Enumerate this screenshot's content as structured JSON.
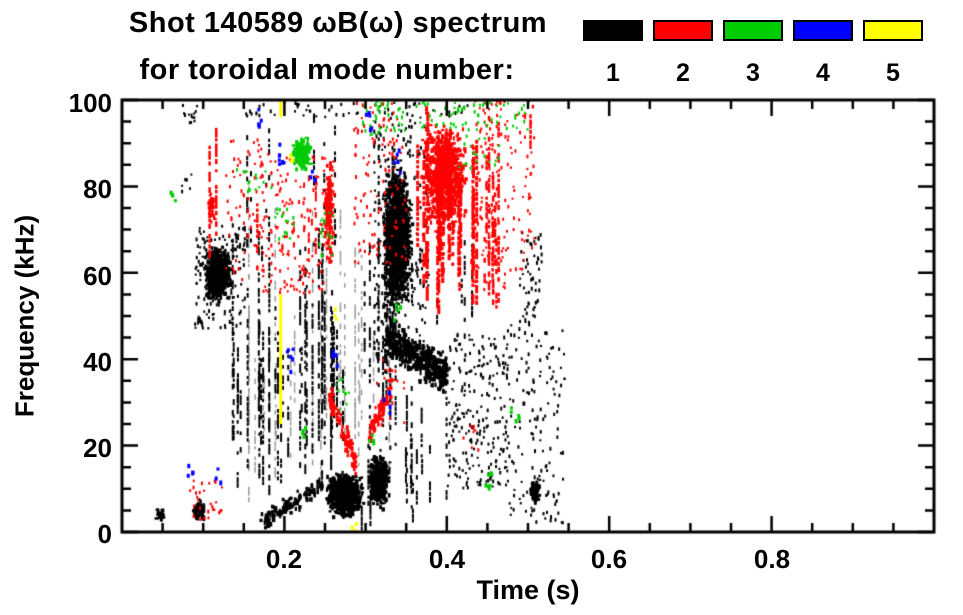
{
  "chart_data": {
    "type": "scatter",
    "title_line1": "Shot 140589 ωB(ω) spectrum",
    "title_line2": "for toroidal mode number:",
    "legend": {
      "items": [
        {
          "label": "1",
          "color": "#000000"
        },
        {
          "label": "2",
          "color": "#ff0000"
        },
        {
          "label": "3",
          "color": "#00cc00"
        },
        {
          "label": "4",
          "color": "#0000ff"
        },
        {
          "label": "5",
          "color": "#ffff00"
        }
      ]
    },
    "mode_colors": {
      "1": "#000000",
      "2": "#ff0000",
      "3": "#00cc00",
      "4": "#0000ff",
      "5": "#ffff00"
    },
    "x_axis": {
      "label": "Time (s)",
      "lim": [
        0,
        1.0
      ],
      "major_ticks": [
        0.2,
        0.4,
        0.6,
        0.8
      ],
      "tick_labels": [
        "0.2",
        "0.4",
        "0.6",
        "0.8"
      ],
      "minor_step": 0.05
    },
    "y_axis": {
      "label": "Frequency (kHz)",
      "lim": [
        0,
        100
      ],
      "major_ticks": [
        0,
        20,
        40,
        60,
        80,
        100
      ],
      "tick_labels": [
        "0",
        "20",
        "40",
        "60",
        "80",
        "100"
      ],
      "minor_step": 5
    },
    "frame_color": "#000000",
    "plot_bg": "#ffffff",
    "clusters": [
      {
        "mode": 1,
        "color": "#9a9a9a",
        "shape": "vstreaks",
        "t": [
          0.14,
          0.335
        ],
        "f": [
          3,
          80
        ],
        "cols": 22,
        "p": 0.5,
        "w": 1.5,
        "note": "faint gray streak comb"
      },
      {
        "mode": 1,
        "shape": "blob",
        "t": [
          0.038,
          0.054
        ],
        "f": [
          2,
          6
        ],
        "n": 30
      },
      {
        "mode": 1,
        "shape": "blob",
        "t": [
          0.083,
          0.107
        ],
        "f": [
          2,
          8
        ],
        "n": 70
      },
      {
        "mode": 1,
        "shape": "spread",
        "t": [
          0.074,
          0.094
        ],
        "f": [
          93,
          100
        ],
        "n": 14
      },
      {
        "mode": 1,
        "shape": "spread",
        "t": [
          0.074,
          0.09
        ],
        "f": [
          78,
          84
        ],
        "n": 6
      },
      {
        "mode": 1,
        "shape": "blob",
        "t": [
          0.096,
          0.138
        ],
        "f": [
          51,
          68
        ],
        "n": 650,
        "note": "dense n=1 blob ~60 kHz at 0.1-0.14 s"
      },
      {
        "mode": 1,
        "shape": "spread",
        "t": [
          0.09,
          0.152
        ],
        "f": [
          47,
          71
        ],
        "n": 160
      },
      {
        "mode": 1,
        "shape": "vstreaks",
        "t": [
          0.13,
          0.275
        ],
        "f": [
          8,
          72
        ],
        "cols": 34,
        "p": 0.6,
        "w": 2,
        "note": "comb of vertical streaks"
      },
      {
        "mode": 1,
        "shape": "vstreaks",
        "t": [
          0.145,
          0.275
        ],
        "f": [
          60,
          100
        ],
        "cols": 9,
        "p": 0.35,
        "w": 2
      },
      {
        "mode": 1,
        "shape": "spread",
        "t": [
          0.135,
          0.43
        ],
        "f": [
          96,
          100
        ],
        "n": 60
      },
      {
        "mode": 1,
        "shape": "band",
        "t": [
          0.17,
          0.247
        ],
        "f": [
          2,
          11
        ],
        "th": 3,
        "n": 130,
        "note": "rising low-f chirp"
      },
      {
        "mode": 1,
        "shape": "blob",
        "t": [
          0.245,
          0.302
        ],
        "f": [
          2,
          15
        ],
        "n": 850,
        "note": "dense low-f mass"
      },
      {
        "mode": 1,
        "shape": "blob",
        "t": [
          0.3,
          0.333
        ],
        "f": [
          4,
          20
        ],
        "n": 500
      },
      {
        "mode": 1,
        "shape": "vstreaks",
        "t": [
          0.295,
          0.312
        ],
        "f": [
          0,
          22
        ],
        "cols": 3,
        "p": 0.7,
        "w": 2
      },
      {
        "mode": 1,
        "shape": "vstreaks",
        "t": [
          0.277,
          0.34
        ],
        "f": [
          15,
          95
        ],
        "cols": 12,
        "p": 0.5,
        "w": 2
      },
      {
        "mode": 1,
        "shape": "blob",
        "t": [
          0.315,
          0.362
        ],
        "f": [
          46,
          90
        ],
        "n": 1500,
        "note": "large n=1 mass 0.32-0.36 s"
      },
      {
        "mode": 1,
        "shape": "spread",
        "t": [
          0.31,
          0.378
        ],
        "f": [
          40,
          96
        ],
        "n": 220
      },
      {
        "mode": 1,
        "shape": "band",
        "t": [
          0.325,
          0.4
        ],
        "f": [
          45,
          36
        ],
        "th": 6,
        "n": 450,
        "note": "descending 35-45 kHz band"
      },
      {
        "mode": 1,
        "shape": "vstreaks",
        "t": [
          0.33,
          0.402
        ],
        "f": [
          2,
          40
        ],
        "cols": 10,
        "p": 0.5,
        "w": 2
      },
      {
        "mode": 1,
        "shape": "vstreaks",
        "t": [
          0.355,
          0.432
        ],
        "f": [
          45,
          70
        ],
        "cols": 8,
        "p": 0.4,
        "w": 2
      },
      {
        "mode": 1,
        "shape": "spread",
        "t": [
          0.4,
          0.475
        ],
        "f": [
          10,
          46
        ],
        "n": 230
      },
      {
        "mode": 1,
        "shape": "spread",
        "t": [
          0.475,
          0.545
        ],
        "f": [
          2,
          48
        ],
        "n": 150
      },
      {
        "mode": 1,
        "shape": "blob",
        "t": [
          0.5,
          0.516
        ],
        "f": [
          6,
          13
        ],
        "n": 90
      },
      {
        "mode": 1,
        "shape": "spread",
        "t": [
          0.49,
          0.517
        ],
        "f": [
          48,
          70
        ],
        "n": 60
      },
      {
        "mode": 2,
        "shape": "vstreaks",
        "t": [
          0.103,
          0.118
        ],
        "f": [
          60,
          100
        ],
        "cols": 2,
        "p": 0.75,
        "w": 2.5,
        "note": "broken red line ~0.11 s"
      },
      {
        "mode": 2,
        "shape": "blob",
        "t": [
          0.104,
          0.116
        ],
        "f": [
          70,
          80
        ],
        "n": 40
      },
      {
        "mode": 2,
        "shape": "spread",
        "t": [
          0.08,
          0.125
        ],
        "f": [
          3,
          12
        ],
        "n": 28
      },
      {
        "mode": 2,
        "shape": "spread",
        "t": [
          0.125,
          0.175
        ],
        "f": [
          58,
          92
        ],
        "n": 60
      },
      {
        "mode": 2,
        "shape": "vstreaks",
        "t": [
          0.162,
          0.17
        ],
        "f": [
          58,
          78
        ],
        "cols": 1,
        "p": 0.8,
        "w": 2.5
      },
      {
        "mode": 2,
        "shape": "spread",
        "t": [
          0.17,
          0.25
        ],
        "f": [
          55,
          88
        ],
        "n": 150
      },
      {
        "mode": 2,
        "shape": "vstreaks",
        "t": [
          0.19,
          0.245
        ],
        "f": [
          60,
          88
        ],
        "cols": 4,
        "p": 0.45,
        "w": 2
      },
      {
        "mode": 2,
        "shape": "blob",
        "t": [
          0.247,
          0.263
        ],
        "f": [
          58,
          90
        ],
        "n": 170
      },
      {
        "mode": 2,
        "shape": "band",
        "t": [
          0.255,
          0.288
        ],
        "f": [
          31,
          16
        ],
        "th": 4,
        "n": 90,
        "note": "descending red arc"
      },
      {
        "mode": 2,
        "shape": "band",
        "t": [
          0.303,
          0.332
        ],
        "f": [
          22,
          34
        ],
        "th": 4,
        "n": 60
      },
      {
        "mode": 2,
        "shape": "spread",
        "t": [
          0.285,
          0.35
        ],
        "f": [
          62,
          100
        ],
        "n": 120
      },
      {
        "mode": 2,
        "shape": "spread",
        "t": [
          0.31,
          0.35
        ],
        "f": [
          25,
          40
        ],
        "n": 22
      },
      {
        "mode": 2,
        "shape": "vstreaks",
        "t": [
          0.356,
          0.437
        ],
        "f": [
          50,
          100
        ],
        "cols": 22,
        "p": 0.75,
        "w": 3,
        "note": "dense n=2 region 0.36-0.44 s"
      },
      {
        "mode": 2,
        "shape": "blob",
        "t": [
          0.362,
          0.432
        ],
        "f": [
          66,
          99
        ],
        "n": 900
      },
      {
        "mode": 2,
        "shape": "vstreaks",
        "t": [
          0.437,
          0.47
        ],
        "f": [
          52,
          100
        ],
        "cols": 8,
        "p": 0.5,
        "w": 2.5
      },
      {
        "mode": 2,
        "shape": "spread",
        "t": [
          0.43,
          0.472
        ],
        "f": [
          55,
          100
        ],
        "n": 130
      },
      {
        "mode": 2,
        "shape": "spread",
        "t": [
          0.472,
          0.51
        ],
        "f": [
          60,
          100
        ],
        "n": 60
      },
      {
        "mode": 2,
        "shape": "vstreaks",
        "t": [
          0.502,
          0.507
        ],
        "f": [
          87,
          100
        ],
        "cols": 1,
        "p": 0.85,
        "w": 2.5
      },
      {
        "mode": 2,
        "shape": "spread",
        "t": [
          0.418,
          0.442
        ],
        "f": [
          19,
          25
        ],
        "n": 8
      },
      {
        "mode": 3,
        "shape": "dots",
        "t": [
          0.06,
          0.066
        ],
        "f": [
          76,
          79
        ],
        "n": 4
      },
      {
        "mode": 3,
        "shape": "spread",
        "t": [
          0.138,
          0.185
        ],
        "f": [
          78,
          84
        ],
        "n": 16
      },
      {
        "mode": 3,
        "shape": "blob",
        "t": [
          0.205,
          0.238
        ],
        "f": [
          82,
          93
        ],
        "n": 180,
        "note": "green patch ~0.22 s"
      },
      {
        "mode": 3,
        "shape": "spread",
        "t": [
          0.188,
          0.212
        ],
        "f": [
          68,
          76
        ],
        "n": 16
      },
      {
        "mode": 3,
        "shape": "spread",
        "t": [
          0.243,
          0.262
        ],
        "f": [
          64,
          74
        ],
        "n": 18
      },
      {
        "mode": 3,
        "shape": "dots",
        "t": [
          0.219,
          0.228
        ],
        "f": [
          22,
          26
        ],
        "n": 4
      },
      {
        "mode": 3,
        "shape": "spread",
        "t": [
          0.26,
          0.29
        ],
        "f": [
          27,
          36
        ],
        "n": 10
      },
      {
        "mode": 3,
        "shape": "dots",
        "t": [
          0.304,
          0.313
        ],
        "f": [
          19,
          23
        ],
        "n": 4
      },
      {
        "mode": 3,
        "shape": "spread",
        "t": [
          0.295,
          0.35
        ],
        "f": [
          92,
          100
        ],
        "n": 40
      },
      {
        "mode": 3,
        "shape": "spread",
        "t": [
          0.36,
          0.5
        ],
        "f": [
          93,
          100
        ],
        "n": 65
      },
      {
        "mode": 3,
        "shape": "spread",
        "t": [
          0.415,
          0.465
        ],
        "f": [
          84,
          92
        ],
        "n": 18
      },
      {
        "mode": 3,
        "shape": "dots",
        "t": [
          0.443,
          0.458
        ],
        "f": [
          10,
          14
        ],
        "n": 7
      },
      {
        "mode": 3,
        "shape": "dots",
        "t": [
          0.478,
          0.492
        ],
        "f": [
          25,
          30
        ],
        "n": 5
      },
      {
        "mode": 3,
        "shape": "dots",
        "t": [
          0.335,
          0.346
        ],
        "f": [
          48,
          53
        ],
        "n": 4
      },
      {
        "mode": 4,
        "shape": "dots",
        "t": [
          0.081,
          0.088
        ],
        "f": [
          12,
          16
        ],
        "n": 4
      },
      {
        "mode": 4,
        "shape": "dots",
        "t": [
          0.114,
          0.122
        ],
        "f": [
          11,
          15
        ],
        "n": 3
      },
      {
        "mode": 4,
        "shape": "dots",
        "t": [
          0.168,
          0.175
        ],
        "f": [
          93,
          98
        ],
        "n": 6
      },
      {
        "mode": 4,
        "shape": "dots",
        "t": [
          0.19,
          0.2
        ],
        "f": [
          85,
          90
        ],
        "n": 7
      },
      {
        "mode": 4,
        "shape": "dots",
        "t": [
          0.203,
          0.211
        ],
        "f": [
          37,
          43
        ],
        "n": 6
      },
      {
        "mode": 4,
        "shape": "dots",
        "t": [
          0.231,
          0.239
        ],
        "f": [
          79,
          84
        ],
        "n": 4
      },
      {
        "mode": 4,
        "shape": "dots",
        "t": [
          0.259,
          0.268
        ],
        "f": [
          38,
          43
        ],
        "n": 5
      },
      {
        "mode": 4,
        "shape": "dots",
        "t": [
          0.297,
          0.308
        ],
        "f": [
          93,
          99
        ],
        "n": 6
      },
      {
        "mode": 4,
        "shape": "dots",
        "t": [
          0.321,
          0.331
        ],
        "f": [
          27,
          33
        ],
        "n": 5
      },
      {
        "mode": 4,
        "shape": "dots",
        "t": [
          0.333,
          0.343
        ],
        "f": [
          83,
          89
        ],
        "n": 5
      },
      {
        "mode": 5,
        "shape": "vline",
        "t": [
          0.1955
        ],
        "f": [
          25,
          55
        ],
        "w": 3,
        "note": "solid yellow line at 0.196 s"
      },
      {
        "mode": 5,
        "shape": "vline",
        "t": [
          0.1955
        ],
        "f": [
          96,
          100
        ],
        "w": 3
      },
      {
        "mode": 5,
        "shape": "dots",
        "t": [
          0.207,
          0.213
        ],
        "f": [
          85,
          88
        ],
        "n": 3
      },
      {
        "mode": 5,
        "shape": "dots",
        "t": [
          0.262,
          0.267
        ],
        "f": [
          48,
          52
        ],
        "n": 3
      },
      {
        "mode": 5,
        "shape": "dots",
        "t": [
          0.283,
          0.289
        ],
        "f": [
          0,
          3
        ],
        "n": 3
      }
    ]
  }
}
